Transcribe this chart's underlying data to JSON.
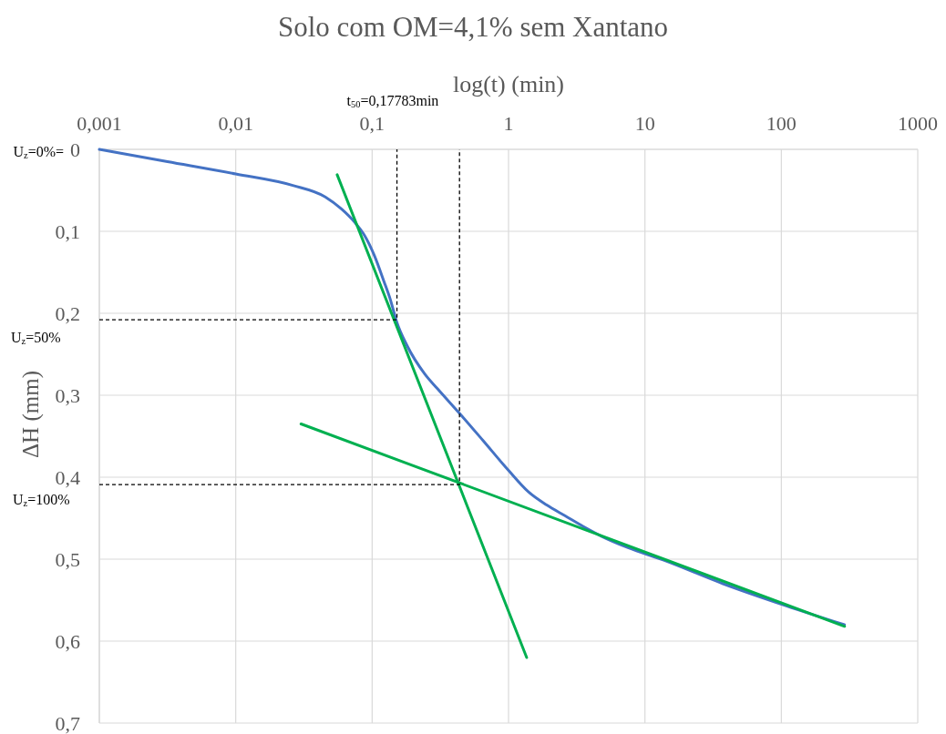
{
  "chart_data": {
    "type": "line",
    "title": "Solo com OM=4,1% sem Xantano",
    "xlabel": "log(t) (min)",
    "ylabel": "ΔH (mm)",
    "log": "x",
    "xlim": [
      0.001,
      1000
    ],
    "ylim": [
      0.7,
      0
    ],
    "xticks": [
      {
        "value": 0.001,
        "label": "0,001"
      },
      {
        "value": 0.01,
        "label": "0,01"
      },
      {
        "value": 0.1,
        "label": "0,1"
      },
      1,
      10,
      100,
      1000
    ],
    "yticks": [
      0,
      {
        "value": 0.1,
        "label": "0,1"
      },
      {
        "value": 0.2,
        "label": "0,2"
      },
      {
        "value": 0.3,
        "label": "0,3"
      },
      {
        "value": 0.4,
        "label": "0,4"
      },
      {
        "value": 0.5,
        "label": "0,5"
      },
      {
        "value": 0.6,
        "label": "0,6"
      },
      {
        "value": 0.7,
        "label": "0,7"
      }
    ],
    "grid": true,
    "line_style": "solid",
    "annotations": [
      "t$_{50}$=0,17783min",
      "U$_{z}$=0%=",
      "U$_{z}$=50%",
      "U$_{z}$=100%"
    ],
    "series": [
      {
        "color": "#4472c4",
        "x": [
          0.001,
          0.00316,
          0.01,
          0.0262,
          0.0453,
          0.0598,
          0.0745,
          0.0879,
          0.1035,
          0.122,
          0.1364,
          0.151,
          0.181,
          0.243,
          0.301,
          0.442,
          0.648,
          1.003,
          1.4,
          1.905,
          2.59,
          3.52,
          4.8,
          7.52,
          13.6,
          37.4,
          109,
          290
        ],
        "values": [
          0,
          0.015,
          0.03,
          0.044,
          0.058,
          0.073,
          0.089,
          0.105,
          0.129,
          0.161,
          0.184,
          0.21,
          0.24,
          0.274,
          0.292,
          0.323,
          0.355,
          0.392,
          0.418,
          0.434,
          0.447,
          0.46,
          0.472,
          0.486,
          0.501,
          0.53,
          0.557,
          0.58
        ]
      },
      {
        "color": "#00b050",
        "x": [
          0.0554,
          1.358
        ],
        "values": [
          0.031,
          0.62
        ]
      },
      {
        "color": "#00b050",
        "x": [
          0.0301,
          291
        ],
        "values": [
          0.335,
          0.582
        ]
      },
      {
        "color": "#000000",
        "line_style": "dashed",
        "x": [
          0.001,
          0.152,
          0.152
        ],
        "values": [
          0.208,
          0.208,
          0
        ]
      },
      {
        "color": "#000000",
        "line_style": "dashed",
        "x": [
          0.001,
          0.437,
          0.437
        ],
        "values": [
          0.409,
          0.409,
          0
        ]
      }
    ]
  }
}
